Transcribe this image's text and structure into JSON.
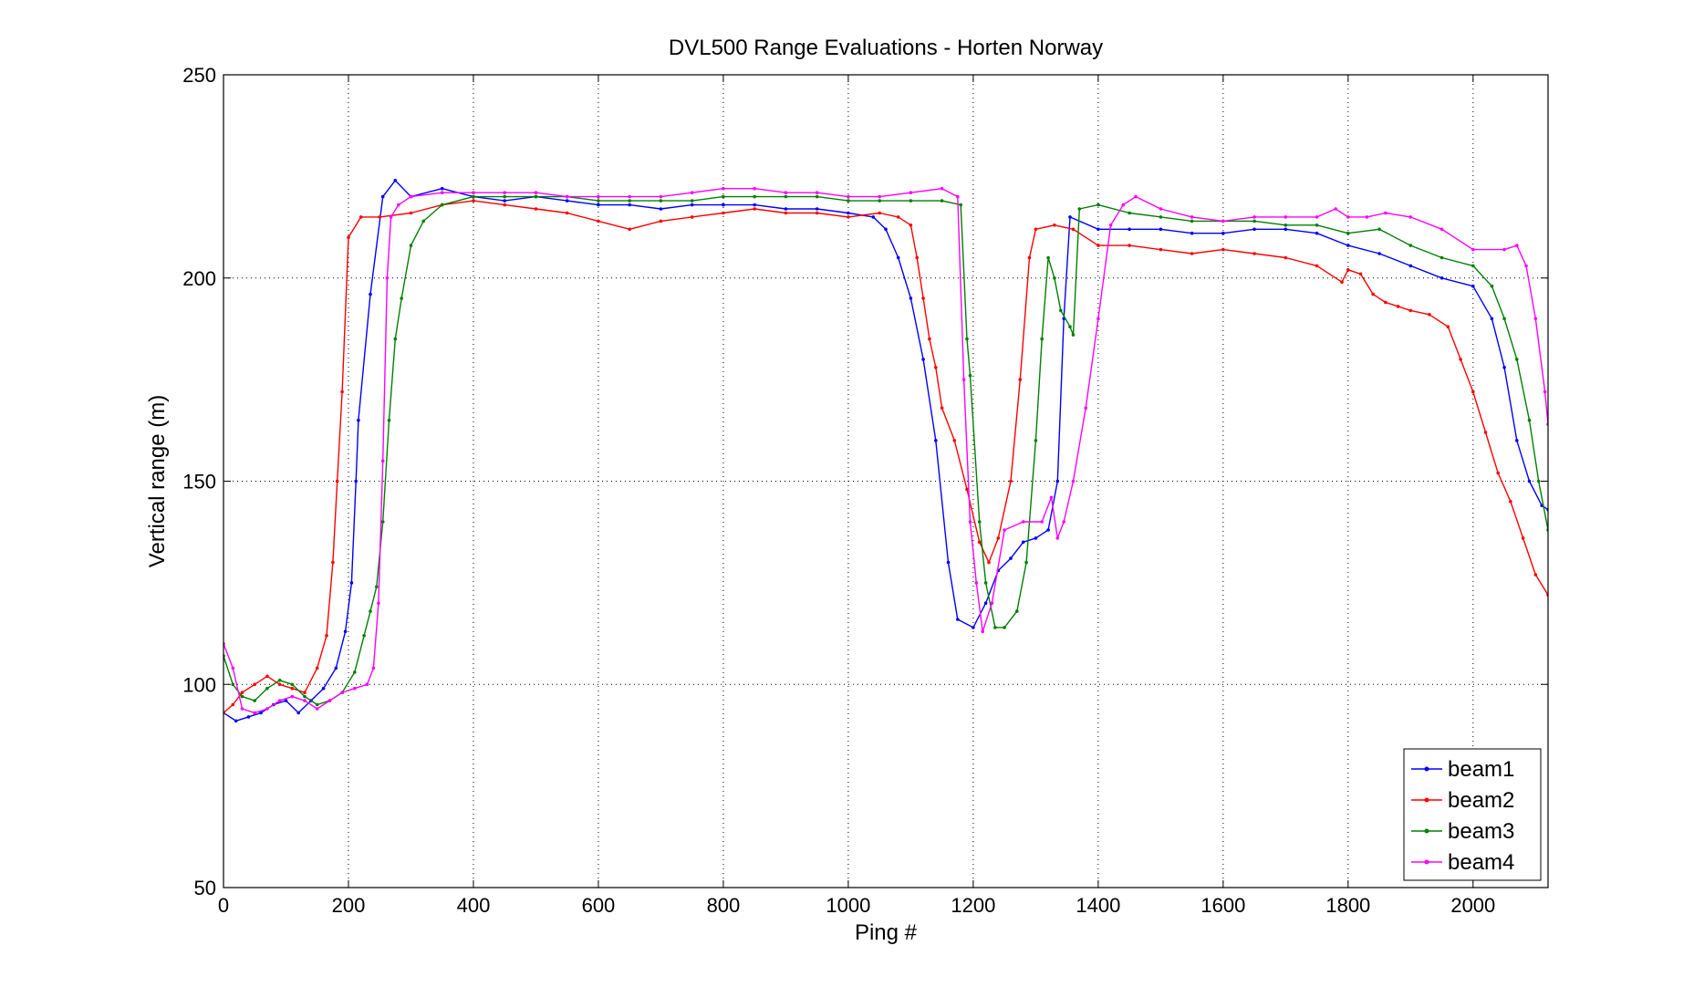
{
  "chart_data": {
    "type": "line",
    "title": "DVL500 Range Evaluations - Horten Norway",
    "xlabel": "Ping #",
    "ylabel": "Vertical range (m)",
    "xlim": [
      0,
      2120
    ],
    "ylim": [
      50,
      250
    ],
    "xticks": [
      0,
      200,
      400,
      600,
      800,
      1000,
      1200,
      1400,
      1600,
      1800,
      2000
    ],
    "yticks": [
      50,
      100,
      150,
      200,
      250
    ],
    "grid": true,
    "legend_position": "bottom-right",
    "series": [
      {
        "name": "beam1",
        "color": "#0000ff",
        "points": [
          [
            0,
            93
          ],
          [
            20,
            91
          ],
          [
            40,
            92
          ],
          [
            60,
            93
          ],
          [
            80,
            95
          ],
          [
            100,
            96
          ],
          [
            120,
            93
          ],
          [
            140,
            96
          ],
          [
            160,
            99
          ],
          [
            180,
            104
          ],
          [
            195,
            113
          ],
          [
            205,
            125
          ],
          [
            212,
            150
          ],
          [
            216,
            165
          ],
          [
            235,
            196
          ],
          [
            255,
            220
          ],
          [
            275,
            224
          ],
          [
            300,
            220
          ],
          [
            350,
            222
          ],
          [
            400,
            220
          ],
          [
            450,
            219
          ],
          [
            500,
            220
          ],
          [
            550,
            219
          ],
          [
            600,
            218
          ],
          [
            650,
            218
          ],
          [
            700,
            217
          ],
          [
            750,
            218
          ],
          [
            800,
            218
          ],
          [
            850,
            218
          ],
          [
            900,
            217
          ],
          [
            950,
            217
          ],
          [
            1000,
            216
          ],
          [
            1040,
            215
          ],
          [
            1060,
            212
          ],
          [
            1080,
            205
          ],
          [
            1100,
            195
          ],
          [
            1120,
            180
          ],
          [
            1140,
            160
          ],
          [
            1160,
            130
          ],
          [
            1175,
            116
          ],
          [
            1200,
            114
          ],
          [
            1220,
            120
          ],
          [
            1240,
            128
          ],
          [
            1260,
            131
          ],
          [
            1280,
            135
          ],
          [
            1300,
            136
          ],
          [
            1320,
            138
          ],
          [
            1335,
            150
          ],
          [
            1345,
            190
          ],
          [
            1355,
            215
          ],
          [
            1400,
            212
          ],
          [
            1450,
            212
          ],
          [
            1500,
            212
          ],
          [
            1550,
            211
          ],
          [
            1600,
            211
          ],
          [
            1650,
            212
          ],
          [
            1700,
            212
          ],
          [
            1750,
            211
          ],
          [
            1800,
            208
          ],
          [
            1850,
            206
          ],
          [
            1900,
            203
          ],
          [
            1950,
            200
          ],
          [
            2000,
            198
          ],
          [
            2030,
            190
          ],
          [
            2050,
            178
          ],
          [
            2070,
            160
          ],
          [
            2090,
            150
          ],
          [
            2110,
            144
          ],
          [
            2120,
            143
          ]
        ]
      },
      {
        "name": "beam2",
        "color": "#ff0000",
        "points": [
          [
            0,
            93
          ],
          [
            15,
            95
          ],
          [
            30,
            98
          ],
          [
            50,
            100
          ],
          [
            70,
            102
          ],
          [
            90,
            100
          ],
          [
            110,
            99
          ],
          [
            130,
            98
          ],
          [
            150,
            104
          ],
          [
            165,
            112
          ],
          [
            175,
            130
          ],
          [
            182,
            150
          ],
          [
            190,
            172
          ],
          [
            200,
            210
          ],
          [
            220,
            215
          ],
          [
            250,
            215
          ],
          [
            300,
            216
          ],
          [
            350,
            218
          ],
          [
            400,
            219
          ],
          [
            450,
            218
          ],
          [
            500,
            217
          ],
          [
            550,
            216
          ],
          [
            600,
            214
          ],
          [
            650,
            212
          ],
          [
            700,
            214
          ],
          [
            750,
            215
          ],
          [
            800,
            216
          ],
          [
            850,
            217
          ],
          [
            900,
            216
          ],
          [
            950,
            216
          ],
          [
            1000,
            215
          ],
          [
            1050,
            216
          ],
          [
            1080,
            215
          ],
          [
            1100,
            213
          ],
          [
            1110,
            205
          ],
          [
            1120,
            195
          ],
          [
            1130,
            185
          ],
          [
            1140,
            178
          ],
          [
            1150,
            168
          ],
          [
            1170,
            160
          ],
          [
            1190,
            148
          ],
          [
            1210,
            135
          ],
          [
            1225,
            130
          ],
          [
            1240,
            136
          ],
          [
            1260,
            150
          ],
          [
            1275,
            175
          ],
          [
            1290,
            205
          ],
          [
            1300,
            212
          ],
          [
            1330,
            213
          ],
          [
            1360,
            212
          ],
          [
            1400,
            208
          ],
          [
            1450,
            208
          ],
          [
            1500,
            207
          ],
          [
            1550,
            206
          ],
          [
            1600,
            207
          ],
          [
            1650,
            206
          ],
          [
            1700,
            205
          ],
          [
            1750,
            203
          ],
          [
            1790,
            199
          ],
          [
            1800,
            202
          ],
          [
            1820,
            201
          ],
          [
            1840,
            196
          ],
          [
            1860,
            194
          ],
          [
            1880,
            193
          ],
          [
            1900,
            192
          ],
          [
            1930,
            191
          ],
          [
            1960,
            188
          ],
          [
            1980,
            180
          ],
          [
            2000,
            172
          ],
          [
            2020,
            162
          ],
          [
            2040,
            152
          ],
          [
            2060,
            145
          ],
          [
            2080,
            136
          ],
          [
            2100,
            127
          ],
          [
            2120,
            122
          ]
        ]
      },
      {
        "name": "beam3",
        "color": "#008000",
        "points": [
          [
            0,
            107
          ],
          [
            15,
            100
          ],
          [
            30,
            97
          ],
          [
            50,
            96
          ],
          [
            70,
            99
          ],
          [
            90,
            101
          ],
          [
            110,
            100
          ],
          [
            130,
            97
          ],
          [
            150,
            95
          ],
          [
            170,
            96
          ],
          [
            190,
            98
          ],
          [
            210,
            103
          ],
          [
            225,
            112
          ],
          [
            235,
            118
          ],
          [
            245,
            124
          ],
          [
            255,
            140
          ],
          [
            265,
            165
          ],
          [
            275,
            185
          ],
          [
            285,
            195
          ],
          [
            300,
            208
          ],
          [
            320,
            214
          ],
          [
            350,
            218
          ],
          [
            400,
            220
          ],
          [
            450,
            220
          ],
          [
            500,
            220
          ],
          [
            550,
            220
          ],
          [
            600,
            219
          ],
          [
            650,
            219
          ],
          [
            700,
            219
          ],
          [
            750,
            219
          ],
          [
            800,
            220
          ],
          [
            850,
            220
          ],
          [
            900,
            220
          ],
          [
            950,
            220
          ],
          [
            1000,
            219
          ],
          [
            1050,
            219
          ],
          [
            1100,
            219
          ],
          [
            1150,
            219
          ],
          [
            1180,
            218
          ],
          [
            1190,
            185
          ],
          [
            1195,
            176
          ],
          [
            1210,
            140
          ],
          [
            1220,
            125
          ],
          [
            1235,
            114
          ],
          [
            1250,
            114
          ],
          [
            1270,
            118
          ],
          [
            1285,
            130
          ],
          [
            1300,
            160
          ],
          [
            1310,
            185
          ],
          [
            1320,
            205
          ],
          [
            1330,
            200
          ],
          [
            1340,
            192
          ],
          [
            1355,
            188
          ],
          [
            1360,
            186
          ],
          [
            1370,
            217
          ],
          [
            1400,
            218
          ],
          [
            1450,
            216
          ],
          [
            1500,
            215
          ],
          [
            1550,
            214
          ],
          [
            1600,
            214
          ],
          [
            1650,
            214
          ],
          [
            1700,
            213
          ],
          [
            1750,
            213
          ],
          [
            1800,
            211
          ],
          [
            1850,
            212
          ],
          [
            1900,
            208
          ],
          [
            1950,
            205
          ],
          [
            2000,
            203
          ],
          [
            2030,
            198
          ],
          [
            2050,
            190
          ],
          [
            2070,
            180
          ],
          [
            2090,
            165
          ],
          [
            2105,
            150
          ],
          [
            2120,
            138
          ]
        ]
      },
      {
        "name": "beam4",
        "color": "#ff00ff",
        "points": [
          [
            0,
            110
          ],
          [
            15,
            104
          ],
          [
            30,
            94
          ],
          [
            50,
            93
          ],
          [
            70,
            94
          ],
          [
            90,
            96
          ],
          [
            110,
            97
          ],
          [
            130,
            96
          ],
          [
            150,
            94
          ],
          [
            170,
            96
          ],
          [
            190,
            98
          ],
          [
            210,
            99
          ],
          [
            230,
            100
          ],
          [
            240,
            104
          ],
          [
            248,
            120
          ],
          [
            255,
            155
          ],
          [
            262,
            200
          ],
          [
            268,
            215
          ],
          [
            280,
            218
          ],
          [
            300,
            220
          ],
          [
            350,
            221
          ],
          [
            400,
            221
          ],
          [
            450,
            221
          ],
          [
            500,
            221
          ],
          [
            550,
            220
          ],
          [
            600,
            220
          ],
          [
            650,
            220
          ],
          [
            700,
            220
          ],
          [
            750,
            221
          ],
          [
            800,
            222
          ],
          [
            850,
            222
          ],
          [
            900,
            221
          ],
          [
            950,
            221
          ],
          [
            1000,
            220
          ],
          [
            1050,
            220
          ],
          [
            1100,
            221
          ],
          [
            1150,
            222
          ],
          [
            1175,
            220
          ],
          [
            1185,
            175
          ],
          [
            1195,
            140
          ],
          [
            1205,
            125
          ],
          [
            1215,
            113
          ],
          [
            1230,
            120
          ],
          [
            1250,
            138
          ],
          [
            1280,
            140
          ],
          [
            1310,
            140
          ],
          [
            1325,
            146
          ],
          [
            1335,
            136
          ],
          [
            1345,
            140
          ],
          [
            1360,
            150
          ],
          [
            1380,
            168
          ],
          [
            1400,
            190
          ],
          [
            1420,
            213
          ],
          [
            1440,
            218
          ],
          [
            1460,
            220
          ],
          [
            1500,
            217
          ],
          [
            1550,
            215
          ],
          [
            1600,
            214
          ],
          [
            1650,
            215
          ],
          [
            1700,
            215
          ],
          [
            1750,
            215
          ],
          [
            1780,
            217
          ],
          [
            1800,
            215
          ],
          [
            1830,
            215
          ],
          [
            1860,
            216
          ],
          [
            1900,
            215
          ],
          [
            1950,
            212
          ],
          [
            2000,
            207
          ],
          [
            2050,
            207
          ],
          [
            2070,
            208
          ],
          [
            2085,
            203
          ],
          [
            2100,
            190
          ],
          [
            2115,
            172
          ],
          [
            2120,
            164
          ]
        ]
      }
    ]
  }
}
